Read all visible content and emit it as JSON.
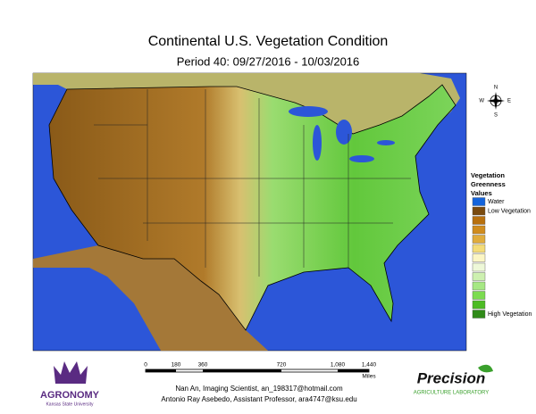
{
  "header": {
    "title": "Continental U.S. Vegetation Condition",
    "subtitle": "Period 40: 09/27/2016 - 10/03/2016"
  },
  "compass": {
    "n": "N",
    "s": "S",
    "e": "E",
    "w": "W"
  },
  "legend": {
    "title_lines": [
      "Vegetation",
      "Greenness",
      "Values"
    ],
    "items": [
      {
        "color": "#1464dc",
        "label": "Water"
      },
      {
        "color": "#7a4a0e",
        "label": "Low Vegetation"
      },
      {
        "color": "#b8700e"
      },
      {
        "color": "#d08c1e"
      },
      {
        "color": "#e0ac3c"
      },
      {
        "color": "#f4dc78"
      },
      {
        "color": "#fcf6c4"
      },
      {
        "color": "#eef8d8"
      },
      {
        "color": "#cdf0b0"
      },
      {
        "color": "#a6e884"
      },
      {
        "color": "#7cdc50"
      },
      {
        "color": "#4cbc24"
      },
      {
        "color": "#2f8a18",
        "label": "High Vegetation"
      }
    ]
  },
  "scale_bar": {
    "labels": [
      "0",
      "180",
      "360",
      "720",
      "1,080",
      "1,440"
    ],
    "unit": "Miles"
  },
  "credits": [
    "Nan An, Imaging Scientist, an_198317@hotmail.com",
    "Antonio Ray Asebedo, Assistant Professor, ara4747@ksu.edu"
  ],
  "logos": {
    "left": {
      "name": "AGRONOMY",
      "tagline": "Kansas State University"
    },
    "right": {
      "name": "Precision",
      "tagline": "Agriculture Laboratory"
    }
  }
}
